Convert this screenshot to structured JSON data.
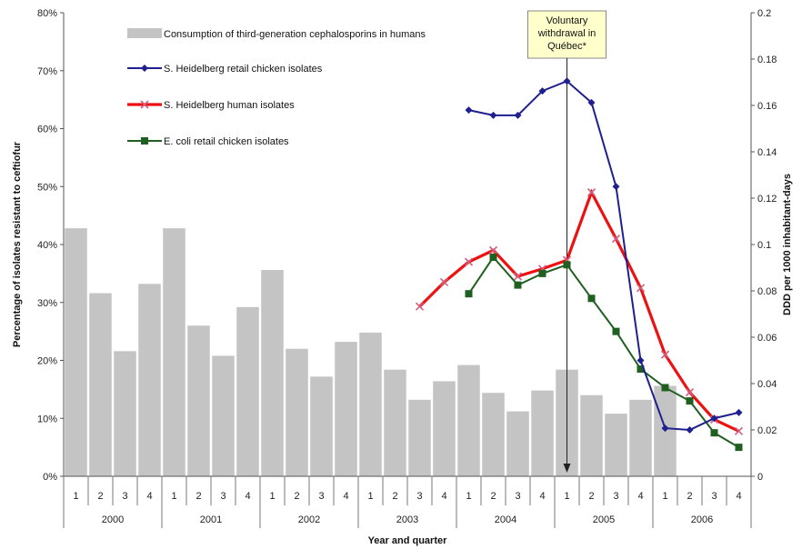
{
  "chart_data": {
    "type": "bar+line",
    "xlabel": "Year and quarter",
    "ylabel_left": "Percentage of isolates resistant to ceftiofur",
    "ylabel_right": "DDD per 1000 inhabitant-days",
    "left_ticks": [
      "0%",
      "10%",
      "20%",
      "30%",
      "40%",
      "50%",
      "60%",
      "70%",
      "80%"
    ],
    "right_ticks": [
      "0",
      "0.02",
      "0.04",
      "0.06",
      "0.08",
      "0.1",
      "0.12",
      "0.14",
      "0.16",
      "0.18",
      "0.2"
    ],
    "ylim_left": [
      0,
      80
    ],
    "ylim_right": [
      0,
      0.2
    ],
    "years": [
      "2000",
      "2001",
      "2002",
      "2003",
      "2004",
      "2005",
      "2006"
    ],
    "quarters": [
      "1",
      "2",
      "3",
      "4"
    ],
    "bars": {
      "name": "Consumption of third-generation cephalosporins in humans",
      "color": "#c4c4c4",
      "axis": "right",
      "values": [
        0.107,
        0.079,
        0.054,
        0.083,
        0.107,
        0.065,
        0.052,
        0.073,
        0.089,
        0.055,
        0.043,
        0.058,
        0.062,
        0.046,
        0.033,
        0.041,
        0.048,
        0.036,
        0.028,
        0.037,
        0.046,
        0.035,
        0.027,
        0.033,
        0.039,
        null,
        null,
        null
      ]
    },
    "series": [
      {
        "name": "S. Heidelberg retail chicken isolates",
        "color": "#1f1f8f",
        "marker": "diamond",
        "axis": "left",
        "values": [
          null,
          null,
          null,
          null,
          null,
          null,
          null,
          null,
          null,
          null,
          null,
          null,
          null,
          null,
          null,
          null,
          63.2,
          62.3,
          62.3,
          66.5,
          68.2,
          64.5,
          50.0,
          20.0,
          8.3,
          8.0,
          10.0,
          11.0
        ]
      },
      {
        "name": "S. Heidelberg human isolates",
        "color": "#ee1111",
        "marker": "x",
        "axis": "left",
        "values": [
          null,
          null,
          null,
          null,
          null,
          null,
          null,
          null,
          null,
          null,
          null,
          null,
          null,
          null,
          29.3,
          33.5,
          37.0,
          39.0,
          34.5,
          35.8,
          37.3,
          49.0,
          41.0,
          32.5,
          21.0,
          14.5,
          9.8,
          7.8
        ]
      },
      {
        "name": "E. coli retail chicken isolates",
        "color": "#1f5f1f",
        "marker": "square",
        "axis": "left",
        "values": [
          null,
          null,
          null,
          null,
          null,
          null,
          null,
          null,
          null,
          null,
          null,
          null,
          null,
          null,
          null,
          null,
          31.5,
          37.8,
          33.0,
          35.0,
          36.5,
          30.7,
          25.0,
          18.5,
          15.3,
          13.0,
          7.5,
          5.0
        ]
      }
    ],
    "annotation": {
      "lines": [
        "Voluntary",
        "withdrawal in",
        "Québec*"
      ],
      "at_year": "2005",
      "at_quarter": "1",
      "box_color": "#ffffcc"
    },
    "grid": false,
    "legend_position": "top-left"
  }
}
